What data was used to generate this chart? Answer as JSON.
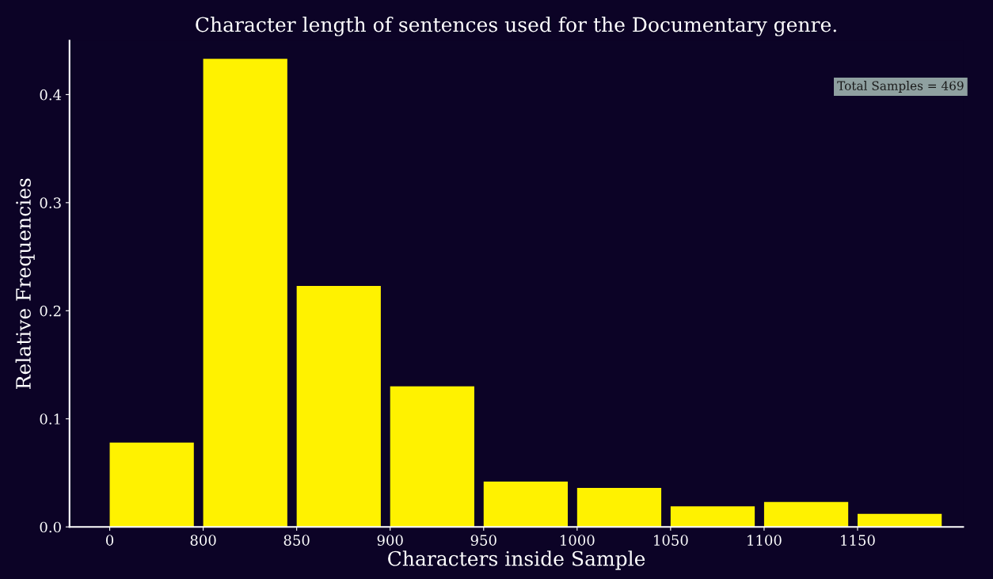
{
  "chart_data": {
    "type": "bar",
    "title": "Character length of sentences used for the Documentary genre.",
    "xlabel": "Characters inside Sample",
    "ylabel": "Relative Frequencies",
    "categories": [
      "0",
      "800",
      "850",
      "900",
      "950",
      "1000",
      "1050",
      "1100",
      "1150"
    ],
    "values": [
      0.078,
      0.433,
      0.223,
      0.13,
      0.042,
      0.036,
      0.019,
      0.023,
      0.012
    ],
    "color": "#fff200",
    "ylim": [
      0,
      0.45
    ],
    "yticks": [
      {
        "value": 0,
        "label": "0.0"
      },
      0.1,
      0.2,
      0.3,
      0.4
    ],
    "grid": false,
    "legend": false,
    "annotations": [
      "Total Samples = 469"
    ]
  }
}
